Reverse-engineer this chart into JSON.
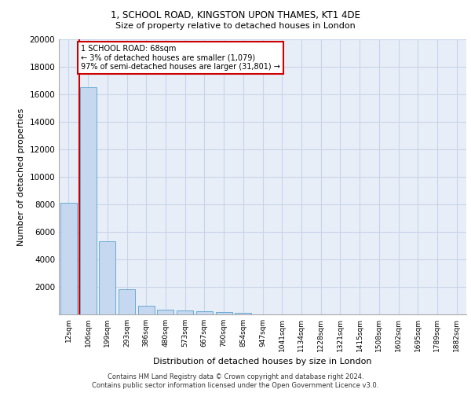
{
  "title_line1": "1, SCHOOL ROAD, KINGSTON UPON THAMES, KT1 4DE",
  "title_line2": "Size of property relative to detached houses in London",
  "xlabel": "Distribution of detached houses by size in London",
  "ylabel": "Number of detached properties",
  "categories": [
    "12sqm",
    "106sqm",
    "199sqm",
    "293sqm",
    "386sqm",
    "480sqm",
    "573sqm",
    "667sqm",
    "760sqm",
    "854sqm",
    "947sqm",
    "1041sqm",
    "1134sqm",
    "1228sqm",
    "1321sqm",
    "1415sqm",
    "1508sqm",
    "1602sqm",
    "1695sqm",
    "1789sqm",
    "1882sqm"
  ],
  "bar_heights": [
    8100,
    16500,
    5300,
    1850,
    650,
    350,
    280,
    215,
    185,
    130,
    0,
    0,
    0,
    0,
    0,
    0,
    0,
    0,
    0,
    0,
    0
  ],
  "bar_color": "#c5d8f0",
  "bar_edge_color": "#6aaad4",
  "grid_color": "#c8d4e8",
  "background_color": "#e8eef8",
  "annotation_line1": "1 SCHOOL ROAD: 68sqm",
  "annotation_line2": "← 3% of detached houses are smaller (1,079)",
  "annotation_line3": "97% of semi-detached houses are larger (31,801) →",
  "vline_color": "#cc0000",
  "vline_x": 0.56,
  "ylim": [
    0,
    20000
  ],
  "yticks": [
    0,
    2000,
    4000,
    6000,
    8000,
    10000,
    12000,
    14000,
    16000,
    18000,
    20000
  ],
  "footer_line1": "Contains HM Land Registry data © Crown copyright and database right 2024.",
  "footer_line2": "Contains public sector information licensed under the Open Government Licence v3.0."
}
